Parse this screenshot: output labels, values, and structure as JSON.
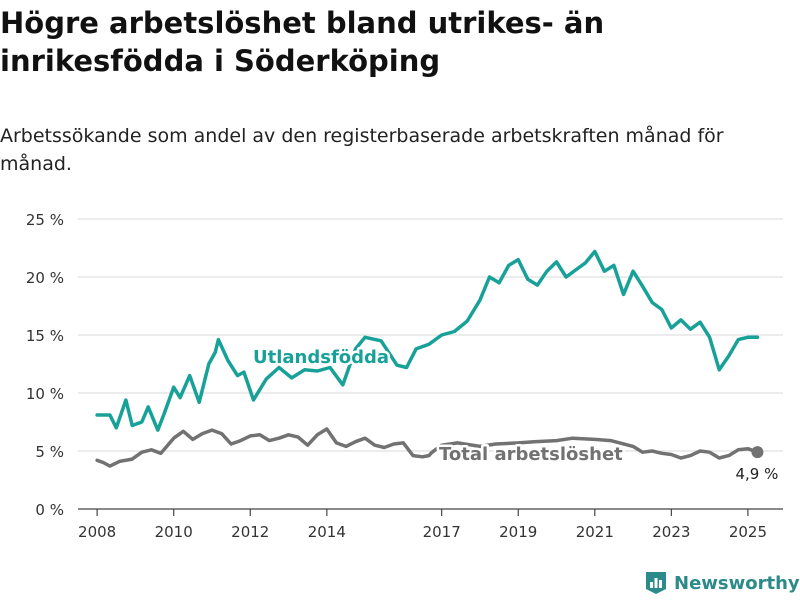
{
  "title": "Högre arbetslöshet bland utrikes- än inrikesfödda i Söderköping",
  "subtitle": "Arbetssökande som andel av den registerbaserade arbetskraften månad för månad.",
  "brand": {
    "name": "Newsworthy",
    "logo_icon": "newsworthy-logo-icon",
    "color": "#2c8a8a"
  },
  "chart_data": {
    "type": "line",
    "x_axis": {
      "range": [
        "2007-07",
        "2025-12"
      ],
      "ticks": [
        {
          "value": "2008-01",
          "label": "2008"
        },
        {
          "value": "2010-01",
          "label": "2010"
        },
        {
          "value": "2012-01",
          "label": "2012"
        },
        {
          "value": "2014-01",
          "label": "2014"
        },
        {
          "value": "2017-01",
          "label": "2017"
        },
        {
          "value": "2019-01",
          "label": "2019"
        },
        {
          "value": "2021-01",
          "label": "2021"
        },
        {
          "value": "2023-01",
          "label": "2023"
        },
        {
          "value": "2025-01",
          "label": "2025"
        }
      ]
    },
    "y_axis": {
      "range": [
        0,
        25
      ],
      "ticks": [
        {
          "value": 0,
          "label": "0 %"
        },
        {
          "value": 5,
          "label": "5 %"
        },
        {
          "value": 10,
          "label": "10 %"
        },
        {
          "value": 15,
          "label": "15 %"
        },
        {
          "value": 20,
          "label": "20 %"
        },
        {
          "value": 25,
          "label": "25 %"
        }
      ]
    },
    "grid": true,
    "series": [
      {
        "name": "Utlandsfödda",
        "color": "#17a198",
        "points": [
          [
            "2008-01",
            8.1
          ],
          [
            "2008-05",
            8.1
          ],
          [
            "2008-07",
            7.0
          ],
          [
            "2008-10",
            9.4
          ],
          [
            "2008-12",
            7.2
          ],
          [
            "2009-03",
            7.5
          ],
          [
            "2009-05",
            8.8
          ],
          [
            "2009-08",
            6.8
          ],
          [
            "2009-10",
            8.2
          ],
          [
            "2010-01",
            10.5
          ],
          [
            "2010-03",
            9.6
          ],
          [
            "2010-06",
            11.5
          ],
          [
            "2010-09",
            9.2
          ],
          [
            "2010-12",
            12.5
          ],
          [
            "2011-02",
            13.5
          ],
          [
            "2011-03",
            14.6
          ],
          [
            "2011-06",
            12.8
          ],
          [
            "2011-09",
            11.5
          ],
          [
            "2011-11",
            11.8
          ],
          [
            "2012-02",
            9.4
          ],
          [
            "2012-06",
            11.2
          ],
          [
            "2012-10",
            12.2
          ],
          [
            "2013-02",
            11.3
          ],
          [
            "2013-06",
            12.0
          ],
          [
            "2013-10",
            11.9
          ],
          [
            "2014-02",
            12.2
          ],
          [
            "2014-06",
            10.7
          ],
          [
            "2014-10",
            13.8
          ],
          [
            "2015-01",
            14.8
          ],
          [
            "2015-06",
            14.5
          ],
          [
            "2015-11",
            12.4
          ],
          [
            "2016-02",
            12.2
          ],
          [
            "2016-05",
            13.8
          ],
          [
            "2016-09",
            14.2
          ],
          [
            "2017-01",
            15.0
          ],
          [
            "2017-05",
            15.3
          ],
          [
            "2017-09",
            16.2
          ],
          [
            "2018-01",
            18.0
          ],
          [
            "2018-04",
            20.0
          ],
          [
            "2018-07",
            19.5
          ],
          [
            "2018-10",
            21.0
          ],
          [
            "2019-01",
            21.5
          ],
          [
            "2019-04",
            19.8
          ],
          [
            "2019-07",
            19.3
          ],
          [
            "2019-10",
            20.5
          ],
          [
            "2020-01",
            21.3
          ],
          [
            "2020-04",
            20.0
          ],
          [
            "2020-07",
            20.6
          ],
          [
            "2020-10",
            21.2
          ],
          [
            "2021-01",
            22.2
          ],
          [
            "2021-04",
            20.5
          ],
          [
            "2021-07",
            21.0
          ],
          [
            "2021-10",
            18.5
          ],
          [
            "2022-01",
            20.5
          ],
          [
            "2022-04",
            19.2
          ],
          [
            "2022-07",
            17.8
          ],
          [
            "2022-10",
            17.2
          ],
          [
            "2023-01",
            15.6
          ],
          [
            "2023-04",
            16.3
          ],
          [
            "2023-07",
            15.5
          ],
          [
            "2023-10",
            16.1
          ],
          [
            "2024-01",
            14.8
          ],
          [
            "2024-04",
            12.0
          ],
          [
            "2024-07",
            13.2
          ],
          [
            "2024-10",
            14.6
          ],
          [
            "2025-01",
            14.8
          ],
          [
            "2025-04",
            14.8
          ]
        ]
      },
      {
        "name": "Total arbetslöshet",
        "color": "#727272",
        "points": [
          [
            "2008-01",
            4.2
          ],
          [
            "2008-03",
            4.0
          ],
          [
            "2008-05",
            3.7
          ],
          [
            "2008-08",
            4.1
          ],
          [
            "2008-12",
            4.3
          ],
          [
            "2009-03",
            4.9
          ],
          [
            "2009-06",
            5.1
          ],
          [
            "2009-09",
            4.8
          ],
          [
            "2010-01",
            6.1
          ],
          [
            "2010-04",
            6.7
          ],
          [
            "2010-07",
            6.0
          ],
          [
            "2010-10",
            6.5
          ],
          [
            "2011-01",
            6.8
          ],
          [
            "2011-04",
            6.5
          ],
          [
            "2011-07",
            5.6
          ],
          [
            "2011-10",
            5.9
          ],
          [
            "2012-01",
            6.3
          ],
          [
            "2012-04",
            6.4
          ],
          [
            "2012-07",
            5.9
          ],
          [
            "2012-10",
            6.1
          ],
          [
            "2013-01",
            6.4
          ],
          [
            "2013-04",
            6.2
          ],
          [
            "2013-07",
            5.5
          ],
          [
            "2013-10",
            6.4
          ],
          [
            "2014-01",
            6.9
          ],
          [
            "2014-04",
            5.7
          ],
          [
            "2014-07",
            5.4
          ],
          [
            "2014-10",
            5.8
          ],
          [
            "2015-01",
            6.1
          ],
          [
            "2015-04",
            5.5
          ],
          [
            "2015-07",
            5.3
          ],
          [
            "2015-10",
            5.6
          ],
          [
            "2016-01",
            5.7
          ],
          [
            "2016-04",
            4.6
          ],
          [
            "2016-07",
            4.5
          ],
          [
            "2016-09",
            4.6
          ],
          [
            "2016-10",
            4.9
          ],
          [
            "2017-01",
            5.5
          ],
          [
            "2017-06",
            5.7
          ],
          [
            "2018-01",
            5.4
          ],
          [
            "2018-06",
            5.6
          ],
          [
            "2019-01",
            5.7
          ],
          [
            "2019-06",
            5.8
          ],
          [
            "2020-01",
            5.9
          ],
          [
            "2020-06",
            6.1
          ],
          [
            "2021-01",
            6.0
          ],
          [
            "2021-06",
            5.9
          ],
          [
            "2022-01",
            5.4
          ],
          [
            "2022-04",
            4.9
          ],
          [
            "2022-07",
            5.0
          ],
          [
            "2022-10",
            4.8
          ],
          [
            "2023-01",
            4.7
          ],
          [
            "2023-04",
            4.4
          ],
          [
            "2023-07",
            4.6
          ],
          [
            "2023-10",
            5.0
          ],
          [
            "2024-01",
            4.9
          ],
          [
            "2024-04",
            4.4
          ],
          [
            "2024-07",
            4.6
          ],
          [
            "2024-10",
            5.1
          ],
          [
            "2025-01",
            5.2
          ],
          [
            "2025-04",
            4.9
          ]
        ]
      }
    ],
    "labels": [
      {
        "series": "Utlandsfödda",
        "text": "Utlandsfödda"
      },
      {
        "series": "Total arbetslöshet",
        "text": "Total arbetslöshet"
      }
    ],
    "end_point": {
      "series": "Total arbetslöshet",
      "x": "2025-04",
      "y": 4.9,
      "label": "4,9 %"
    }
  }
}
